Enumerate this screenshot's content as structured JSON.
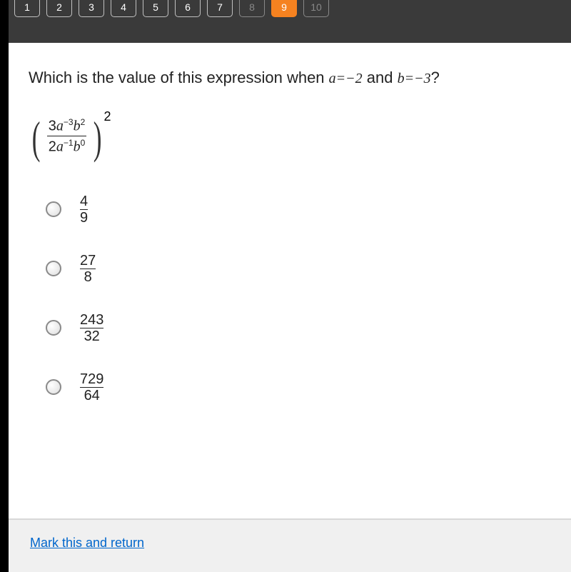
{
  "nav": {
    "tabs": [
      {
        "label": "1",
        "state": "normal"
      },
      {
        "label": "2",
        "state": "normal"
      },
      {
        "label": "3",
        "state": "normal"
      },
      {
        "label": "4",
        "state": "normal"
      },
      {
        "label": "5",
        "state": "normal"
      },
      {
        "label": "6",
        "state": "normal"
      },
      {
        "label": "7",
        "state": "normal"
      },
      {
        "label": "8",
        "state": "inactive"
      },
      {
        "label": "9",
        "state": "active"
      },
      {
        "label": "10",
        "state": "inactive"
      }
    ],
    "colors": {
      "strip_bg": "#3a3a3a",
      "active_bg": "#f58220",
      "border": "#c0c0c0",
      "inactive_text": "#888888",
      "text": "#ffffff"
    }
  },
  "question": {
    "prefix": "Which is the value of this expression when ",
    "var_a": "a",
    "eq1": "=−2",
    "and": " and ",
    "var_b": "b",
    "eq2": "=−3",
    "suffix": "?"
  },
  "expression": {
    "numerator": {
      "coef": "3",
      "a_exp": "−3",
      "b_exp": "2"
    },
    "denominator": {
      "coef": "2",
      "a_exp": "−1",
      "b_exp": "0"
    },
    "outer_exp": "2"
  },
  "options": [
    {
      "num": "4",
      "den": "9"
    },
    {
      "num": "27",
      "den": "8"
    },
    {
      "num": "243",
      "den": "32"
    },
    {
      "num": "729",
      "den": "64"
    }
  ],
  "footer": {
    "mark_link": "Mark this and return"
  },
  "colors": {
    "page_bg": "#ffffff",
    "footer_bg": "#f0f0f0",
    "footer_border": "#d8d8d8",
    "link": "#0066cc",
    "text": "#222222",
    "left_bar": "#000000"
  }
}
